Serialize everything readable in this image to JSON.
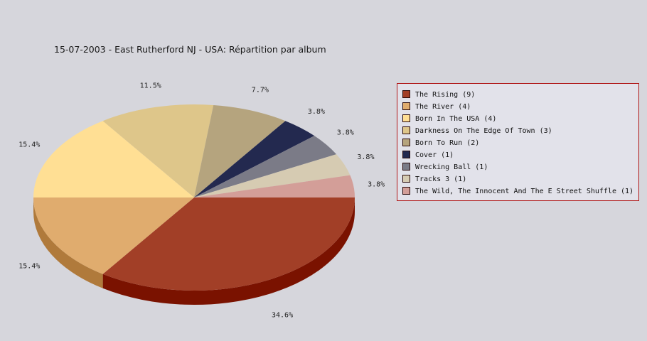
{
  "chart_data": {
    "type": "pie",
    "title": "15-07-2003 - East Rutherford NJ - USA:  Répartition par album",
    "three_d": true,
    "legend_position": "right",
    "slices": [
      {
        "label": "The Rising",
        "count": 9,
        "legend": "The Rising (9)",
        "percent_label": "34.6%",
        "color": "#a23f27",
        "side_color": "#7a1200"
      },
      {
        "label": "The River",
        "count": 4,
        "legend": "The River (4)",
        "percent_label": "15.4%",
        "color": "#e0ac6e",
        "side_color": "#b07a3b"
      },
      {
        "label": "Born In The USA",
        "count": 4,
        "legend": "Born In The USA (4)",
        "percent_label": "15.4%",
        "color": "#ffdf94",
        "side_color": "#c9aa5e"
      },
      {
        "label": "Darkness On The Edge Of Town",
        "count": 3,
        "legend": "Darkness On The Edge Of Town (3)",
        "percent_label": "11.5%",
        "color": "#dec68a",
        "side_color": "#a8925a"
      },
      {
        "label": "Born To Run",
        "count": 2,
        "legend": "Born To Run (2)",
        "percent_label": "7.7%",
        "color": "#b5a47e",
        "side_color": "#857552"
      },
      {
        "label": "Cover",
        "count": 1,
        "legend": "Cover (1)",
        "percent_label": "3.8%",
        "color": "#23294f",
        "side_color": "#121530"
      },
      {
        "label": "Wrecking Ball",
        "count": 1,
        "legend": "Wrecking Ball (1)",
        "percent_label": "3.8%",
        "color": "#7b7b87",
        "side_color": "#54545e"
      },
      {
        "label": "Tracks 3",
        "count": 1,
        "legend": "Tracks 3 (1)",
        "percent_label": "3.8%",
        "color": "#d6cbb2",
        "side_color": "#a89c82"
      },
      {
        "label": "The Wild, The Innocent And The E Street Shuffle",
        "count": 1,
        "legend": "The Wild, The Innocent And The E Street Shuffle (1)",
        "percent_label": "3.8%",
        "color": "#d39e98",
        "side_color": "#a06e68"
      }
    ]
  }
}
